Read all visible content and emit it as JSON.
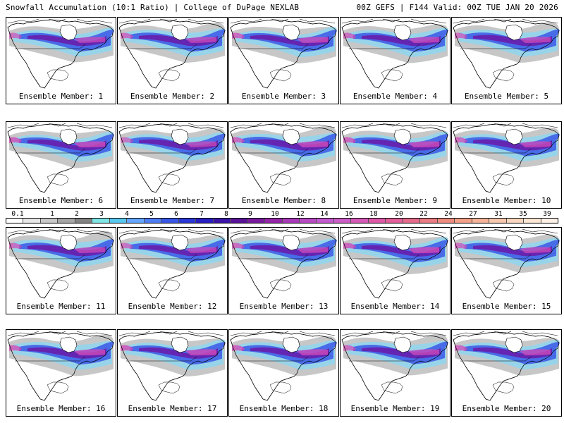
{
  "header": {
    "left_title": "Snowfall Accumulation (10:1 Ratio) | College of DuPage NEXLAB",
    "right_title": "00Z GEFS | F144 Valid: 00Z TUE JAN 20 2026"
  },
  "panels": [
    {
      "label": "Ensemble Member: 1",
      "intensity": 0.55
    },
    {
      "label": "Ensemble Member: 2",
      "intensity": 0.6
    },
    {
      "label": "Ensemble Member: 3",
      "intensity": 0.7
    },
    {
      "label": "Ensemble Member: 4",
      "intensity": 0.65
    },
    {
      "label": "Ensemble Member: 5",
      "intensity": 0.6
    },
    {
      "label": "Ensemble Member: 6",
      "intensity": 0.75
    },
    {
      "label": "Ensemble Member: 7",
      "intensity": 0.5
    },
    {
      "label": "Ensemble Member: 8",
      "intensity": 0.7
    },
    {
      "label": "Ensemble Member: 9",
      "intensity": 0.75
    },
    {
      "label": "Ensemble Member: 10",
      "intensity": 0.65
    },
    {
      "label": "Ensemble Member: 11",
      "intensity": 0.6
    },
    {
      "label": "Ensemble Member: 12",
      "intensity": 0.55
    },
    {
      "label": "Ensemble Member: 13",
      "intensity": 0.65
    },
    {
      "label": "Ensemble Member: 14",
      "intensity": 0.8
    },
    {
      "label": "Ensemble Member: 15",
      "intensity": 0.6
    },
    {
      "label": "Ensemble Member: 16",
      "intensity": 0.75
    },
    {
      "label": "Ensemble Member: 17",
      "intensity": 0.8
    },
    {
      "label": "Ensemble Member: 18",
      "intensity": 0.75
    },
    {
      "label": "Ensemble Member: 19",
      "intensity": 0.65
    },
    {
      "label": "Ensemble Member: 20",
      "intensity": 0.7
    }
  ],
  "colorbar": {
    "labels": [
      "0.1",
      "1",
      "2",
      "3",
      "4",
      "5",
      "6",
      "7",
      "8",
      "9",
      "10",
      "12",
      "14",
      "16",
      "18",
      "20",
      "22",
      "24",
      "27",
      "31",
      "35",
      "39"
    ],
    "colors": [
      "#ffffff",
      "#e8e8e8",
      "#c8c8c8",
      "#a6a6a6",
      "#838383",
      "#7fe5e5",
      "#58c8f0",
      "#66a6ff",
      "#4f7ef5",
      "#3a58e6",
      "#2c38d4",
      "#2a1fc0",
      "#3b14a8",
      "#5a1498",
      "#7a1c9e",
      "#9528a8",
      "#a83cb8",
      "#b84cc4",
      "#c45ad0",
      "#cc5ec8",
      "#d65ab8",
      "#de5aa8",
      "#e2609a",
      "#e66c8c",
      "#ea7c84",
      "#ee8c80",
      "#f2a088",
      "#f5b499",
      "#f8c8ae",
      "#fad8c0",
      "#fce6d4",
      "#fef2e8"
    ]
  }
}
